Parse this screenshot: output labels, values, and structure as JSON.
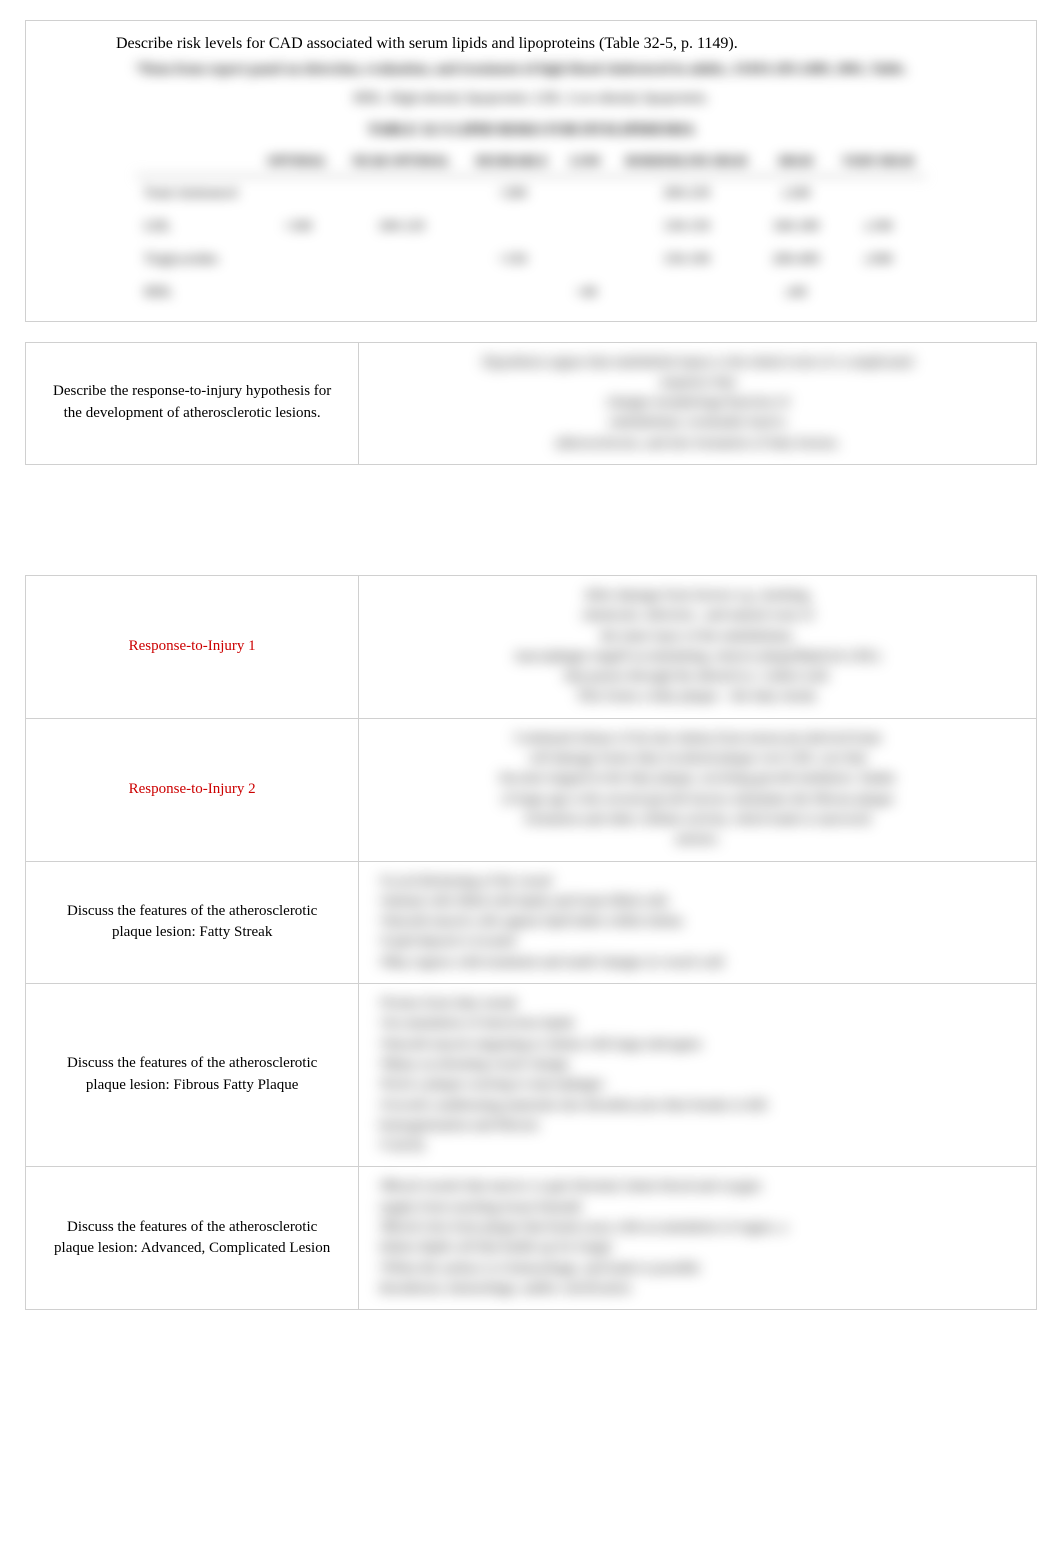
{
  "topCard": {
    "question": "Describe risk levels for CAD associated with serum lipids and lipoproteins (Table 32-5, p. 1149).",
    "sourceNote": "*Data from expert panel on detection, evaluation, and treatment of high blood cholesterol in adults, JAMA 285:2489, 2001, Table.",
    "abbrLine": "HDL: High-density lipoprotein. LDL: Low-density lipoprotein.",
    "tableTitle": "TABLE 32-5 LIPID RISKS FOR DYSLIPIDEMIA",
    "columns": [
      "",
      "OPTIMAL",
      "NEAR OPTIMAL",
      "DESIRABLE",
      "LOW",
      "BORDERLINE HIGH",
      "HIGH",
      "VERY HIGH"
    ],
    "rows": [
      {
        "label": "Total cholesterol",
        "cells": [
          "",
          "",
          "<200",
          "",
          "200-239",
          "≥240",
          ""
        ]
      },
      {
        "label": "LDL",
        "cells": [
          "<100",
          "100-129",
          "",
          "",
          "130-159",
          "160-189",
          "≥190"
        ]
      },
      {
        "label": "Triglycerides",
        "cells": [
          "",
          "",
          "<150",
          "",
          "150-199",
          "200-499",
          "≥500"
        ]
      },
      {
        "label": "HDL",
        "cells": [
          "",
          "",
          "",
          "<40",
          "",
          "≥60",
          ""
        ]
      }
    ],
    "table_style": {
      "header_fontsize": 12.5,
      "cell_fontsize": 14,
      "border_color": "#bbbbbb",
      "text_color": "#111111"
    }
  },
  "cards": [
    {
      "front": "Describe the response-to-injury hypothesis for the development of atherosclerotic lesions.",
      "frontClass": "",
      "backAlign": "center",
      "blur": true,
      "back": "Hypothesis argues that endothelial injury is the initial event of a complicated\nsequence that\nchanges morphology/function of\nendothelium, eventually lead to\natherosclerosis, and into formation of fatty lesions."
    },
    {
      "front": "Response-to-Injury 1",
      "frontClass": "red",
      "backAlign": "center",
      "blur": true,
      "back": "After damage from factors e.g. smoking,\nchemicals, infection , and natural wear of\nthe inner layer of the endothelium,\nmacrophages engulf accumulating, remove plaquellipid (ie LDL)\nthat passes through the altered (i.e. wider) wall.\nThis forms a fatty plaque – the fatty streak."
    },
    {
      "front": "Response-to-Injury 2",
      "frontClass": "red",
      "backAlign": "center",
      "blur": true,
      "back": "Continued release of fat into intima from monocyte-derived foam\ncell damage forms fatty localized plaque over LDL core that\nbecome trapped in the fatty plaque, secreting growth mediators. Intake\nof large age is the several growth factors stimulates the fibrous plaque\nformation and other cellular activity, which leads to narrowed\narteries."
    },
    {
      "front": "Discuss the features of the atherosclerotic plaque lesion: Fatty Streak",
      "frontClass": "",
      "backAlign": "left",
      "blur": true,
      "back": "•Local thickening of the vessel\n•intimal cells filled with lipids and foam-filled cells\n•Smooth muscle cells appear lipid laden within intima\n•Lipid deposit is located\n•May regress with treatment and small changes in vessel wall"
    },
    {
      "front": "Discuss the features of the atherosclerotic plaque lesion: Fibrous Fatty Plaque",
      "frontClass": "",
      "backAlign": "left",
      "blur": true,
      "back": "•Forms from fatty streak\n•Accumulation of intra/extra lipids\n•Smooth muscle migrating to intima with large mitrogens\n•Many accelerating vessel change\n•Exist a plaque scarring to macrophages\n•Growth conditioning materials into thrombocytes then breaks to kill:\nhomogenization and fibrosis\n•Calcify"
    },
    {
      "front": "Discuss the features of the atherosclerotic plaque lesion: Advanced, Complicated Lesion",
      "frontClass": "",
      "backAlign": "left",
      "blur": true,
      "back": "•Blood vessels that narrow or gets blocked, limits blood and oxygen\nsupply from reaching tissue beneath\n•Blood clots form plaque that break away with accumulation of sugars, a\nfailure depth cell that builds up for longer\n•When the surface is it hemorrhage, and leads to possible\nthrombosis, hemorrhage, andlor calcification"
    }
  ],
  "style": {
    "page_bg": "#ffffff",
    "border_color": "#d0d0d0",
    "text_color": "#111111",
    "red_color": "#cc0000",
    "font_family": "Georgia, Times New Roman, serif",
    "front_fontsize": 15,
    "back_fontsize": 14
  }
}
